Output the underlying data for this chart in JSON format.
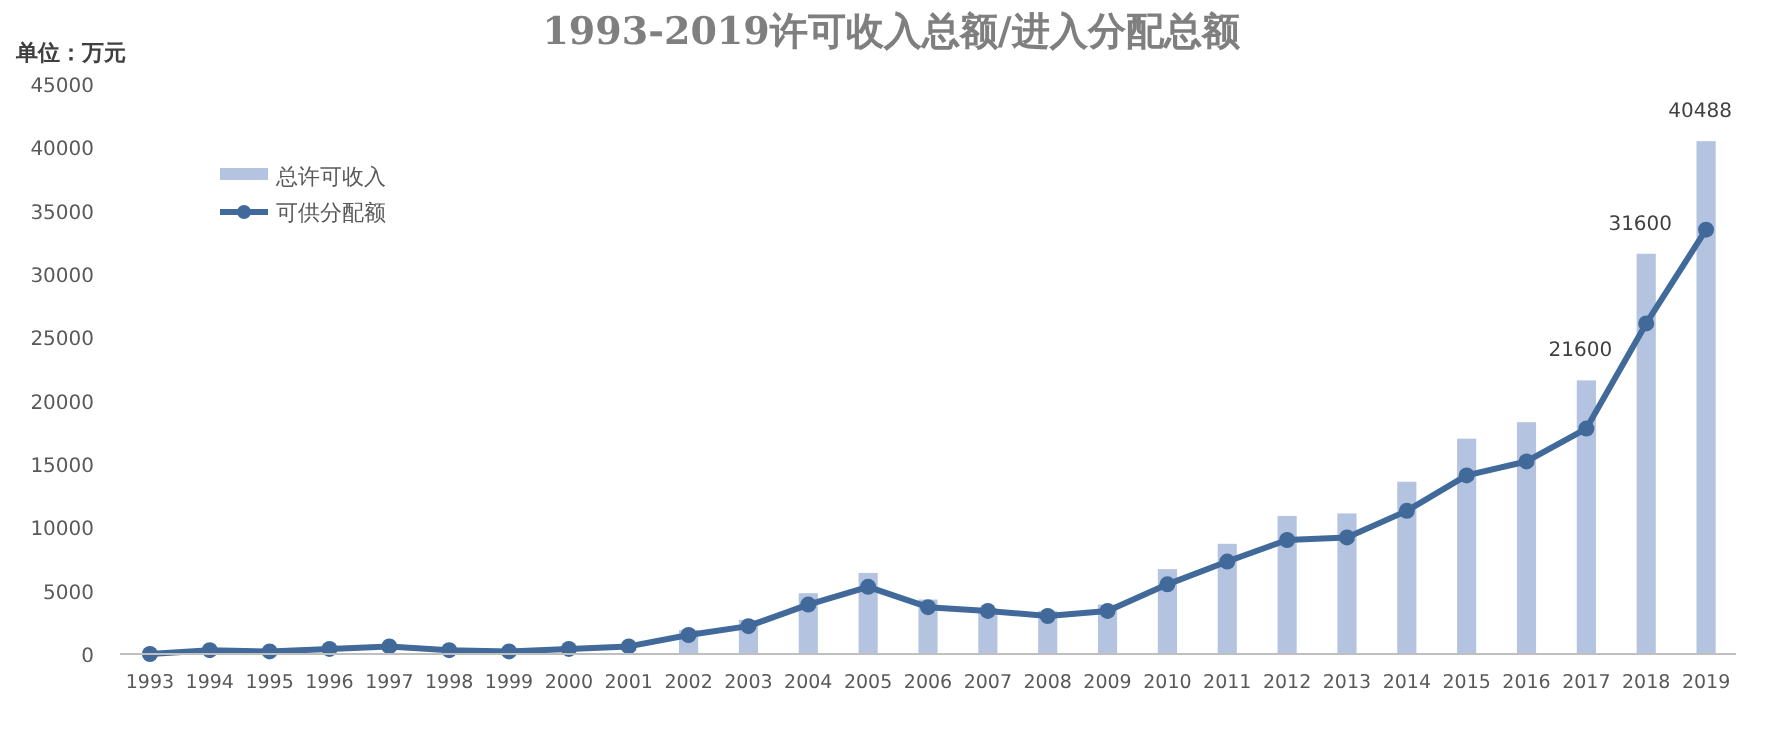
{
  "chart_data": {
    "type": "bar",
    "title": "1993-2019许可收入总额/进入分配总额",
    "ylabel": "单位：万元",
    "categories": [
      "1993",
      "1994",
      "1995",
      "1996",
      "1997",
      "1998",
      "1999",
      "2000",
      "2001",
      "2002",
      "2003",
      "2004",
      "2005",
      "2006",
      "2007",
      "2008",
      "2009",
      "2010",
      "2011",
      "2012",
      "2013",
      "2014",
      "2015",
      "2016",
      "2017",
      "2018",
      "2019"
    ],
    "series": [
      {
        "name": "总许可收入",
        "color": "#b4c4e0",
        "values": [
          null,
          null,
          null,
          null,
          null,
          null,
          null,
          null,
          null,
          1900,
          2700,
          4800,
          6400,
          4300,
          3600,
          3400,
          3900,
          6700,
          8700,
          10900,
          11100,
          13600,
          17000,
          18300,
          21600,
          31600,
          40488
        ],
        "value_labels": [
          null,
          null,
          null,
          null,
          null,
          null,
          null,
          null,
          null,
          null,
          null,
          null,
          null,
          null,
          null,
          null,
          null,
          null,
          null,
          null,
          null,
          null,
          null,
          null,
          "21600",
          "31600",
          "40488"
        ]
      },
      {
        "name": "可供分配额",
        "type": "line",
        "color": "#41699a",
        "marker": "circle",
        "values": [
          0,
          300,
          200,
          400,
          600,
          300,
          200,
          400,
          600,
          1500,
          2200,
          3900,
          5300,
          3700,
          3400,
          3000,
          3400,
          5500,
          7300,
          9000,
          9200,
          11300,
          14100,
          15200,
          17800,
          26100,
          33500
        ]
      }
    ],
    "ylim": [
      0,
      45000
    ],
    "yticks": [
      0,
      5000,
      10000,
      15000,
      20000,
      25000,
      30000,
      35000,
      40000,
      45000
    ],
    "grid": false,
    "legend": "top left"
  }
}
